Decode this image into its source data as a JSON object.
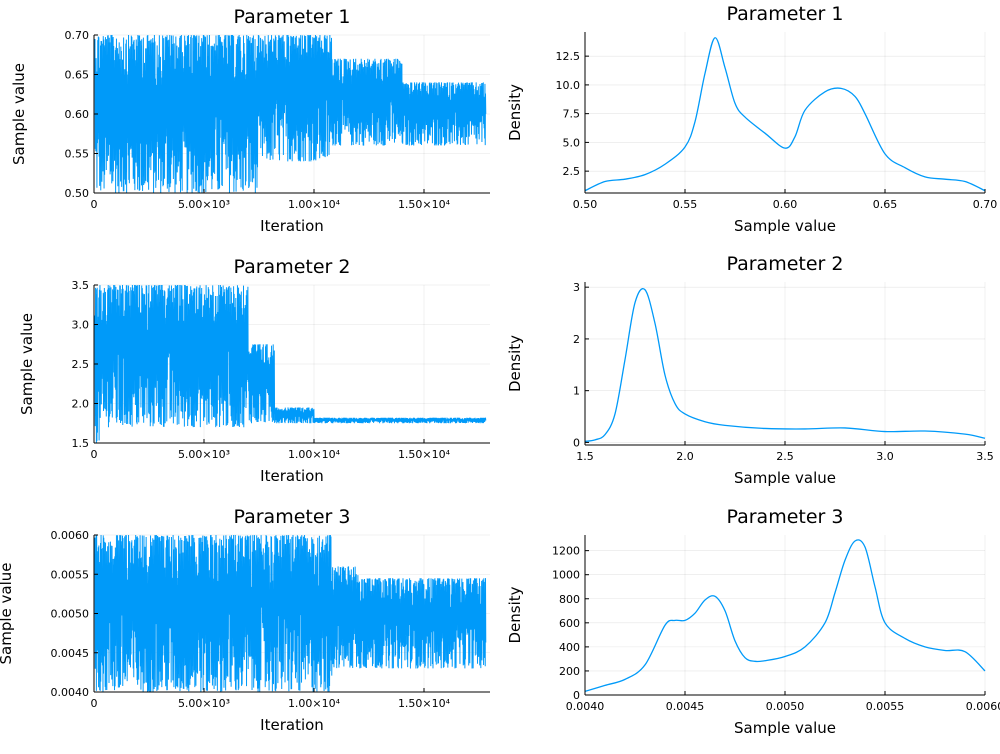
{
  "chart_data": [
    {
      "type": "line",
      "kind": "trace",
      "title": "Parameter 1",
      "xlabel": "Iteration",
      "ylabel": "Sample value",
      "xlim": [
        0,
        18000
      ],
      "ylim": [
        0.5,
        0.7
      ],
      "xticks": [
        0,
        5000,
        10000,
        15000
      ],
      "xtick_labels": [
        "0",
        "5.00×10³",
        "1.00×10⁴",
        "1.50×10⁴"
      ],
      "yticks": [
        0.5,
        0.55,
        0.6,
        0.65,
        0.7
      ],
      "ytick_labels": [
        "0.50",
        "0.55",
        "0.60",
        "0.65",
        "0.70"
      ],
      "color": "#009af9",
      "grid": true,
      "series": [
        {
          "segments": [
            {
              "x_start": 0,
              "x_end": 7500,
              "lower": 0.5,
              "upper": 0.7
            },
            {
              "x_start": 7500,
              "x_end": 10800,
              "lower": 0.54,
              "upper": 0.7
            },
            {
              "x_start": 10800,
              "x_end": 14000,
              "lower": 0.56,
              "upper": 0.67
            },
            {
              "x_start": 14000,
              "x_end": 18000,
              "lower": 0.56,
              "upper": 0.64
            }
          ]
        }
      ]
    },
    {
      "type": "line",
      "kind": "density",
      "title": "Parameter 1",
      "xlabel": "Sample value",
      "ylabel": "Density",
      "xlim": [
        0.5,
        0.7
      ],
      "ylim": [
        0.6,
        14.6
      ],
      "xticks": [
        0.5,
        0.55,
        0.6,
        0.65,
        0.7
      ],
      "xtick_labels": [
        "0.50",
        "0.55",
        "0.60",
        "0.65",
        "0.70"
      ],
      "yticks": [
        2.5,
        5.0,
        7.5,
        10.0,
        12.5
      ],
      "ytick_labels": [
        "2.5",
        "5.0",
        "7.5",
        "10.0",
        "12.5"
      ],
      "color": "#009af9",
      "grid": true,
      "series": [
        {
          "x": [
            0.5,
            0.51,
            0.52,
            0.53,
            0.54,
            0.55,
            0.555,
            0.56,
            0.565,
            0.57,
            0.575,
            0.58,
            0.59,
            0.6,
            0.605,
            0.61,
            0.62,
            0.628,
            0.635,
            0.64,
            0.65,
            0.66,
            0.67,
            0.68,
            0.69,
            0.7
          ],
          "y": [
            0.8,
            1.6,
            1.8,
            2.2,
            3.1,
            4.6,
            6.8,
            11.0,
            14.1,
            11.5,
            8.4,
            7.2,
            5.8,
            4.5,
            5.5,
            7.8,
            9.4,
            9.7,
            9.0,
            7.5,
            4.0,
            2.8,
            2.0,
            1.8,
            1.6,
            0.8
          ]
        }
      ]
    },
    {
      "type": "line",
      "kind": "trace",
      "title": "Parameter 2",
      "xlabel": "Iteration",
      "ylabel": "Sample value",
      "xlim": [
        0,
        18000
      ],
      "ylim": [
        1.5,
        3.5
      ],
      "xticks": [
        0,
        5000,
        10000,
        15000
      ],
      "xtick_labels": [
        "0",
        "5.00×10³",
        "1.00×10⁴",
        "1.50×10⁴"
      ],
      "yticks": [
        1.5,
        2.0,
        2.5,
        3.0,
        3.5
      ],
      "ytick_labels": [
        "1.5",
        "2.0",
        "2.5",
        "3.0",
        "3.5"
      ],
      "color": "#009af9",
      "grid": true,
      "series": [
        {
          "segments": [
            {
              "x_start": 0,
              "x_end": 500,
              "lower": 1.5,
              "upper": 3.5
            },
            {
              "x_start": 500,
              "x_end": 7000,
              "lower": 1.7,
              "upper": 3.5
            },
            {
              "x_start": 7000,
              "x_end": 8200,
              "lower": 1.75,
              "upper": 2.75
            },
            {
              "x_start": 8200,
              "x_end": 10000,
              "lower": 1.75,
              "upper": 1.95
            },
            {
              "x_start": 10000,
              "x_end": 18000,
              "lower": 1.75,
              "upper": 1.82
            }
          ]
        }
      ]
    },
    {
      "type": "line",
      "kind": "density",
      "title": "Parameter 2",
      "xlabel": "Sample value",
      "ylabel": "Density",
      "xlim": [
        1.5,
        3.5
      ],
      "ylim": [
        -0.05,
        3.1
      ],
      "xticks": [
        1.5,
        2.0,
        2.5,
        3.0,
        3.5
      ],
      "xtick_labels": [
        "1.5",
        "2.0",
        "2.5",
        "3.0",
        "3.5"
      ],
      "yticks": [
        0,
        1,
        2,
        3
      ],
      "ytick_labels": [
        "0",
        "1",
        "2",
        "3"
      ],
      "color": "#009af9",
      "grid": true,
      "series": [
        {
          "x": [
            1.5,
            1.55,
            1.6,
            1.65,
            1.7,
            1.75,
            1.8,
            1.85,
            1.9,
            1.95,
            2.0,
            2.1,
            2.2,
            2.4,
            2.6,
            2.8,
            3.0,
            3.2,
            3.4,
            3.5
          ],
          "y": [
            0.02,
            0.05,
            0.15,
            0.55,
            1.6,
            2.7,
            2.95,
            2.3,
            1.3,
            0.75,
            0.55,
            0.4,
            0.33,
            0.27,
            0.26,
            0.28,
            0.21,
            0.22,
            0.16,
            0.08
          ]
        }
      ]
    },
    {
      "type": "line",
      "kind": "trace",
      "title": "Parameter 3",
      "xlabel": "Iteration",
      "ylabel": "Sample value",
      "xlim": [
        0,
        18000
      ],
      "ylim": [
        0.004,
        0.006
      ],
      "xticks": [
        0,
        5000,
        10000,
        15000
      ],
      "xtick_labels": [
        "0",
        "5.00×10³",
        "1.00×10⁴",
        "1.50×10⁴"
      ],
      "yticks": [
        0.004,
        0.0045,
        0.005,
        0.0055,
        0.006
      ],
      "ytick_labels": [
        "0.0040",
        "0.0045",
        "0.0050",
        "0.0055",
        "0.0060"
      ],
      "color": "#009af9",
      "grid": true,
      "series": [
        {
          "segments": [
            {
              "x_start": 0,
              "x_end": 10800,
              "lower": 0.004,
              "upper": 0.006
            },
            {
              "x_start": 10800,
              "x_end": 12000,
              "lower": 0.0043,
              "upper": 0.0056
            },
            {
              "x_start": 12000,
              "x_end": 18000,
              "lower": 0.0043,
              "upper": 0.00545
            }
          ]
        }
      ]
    },
    {
      "type": "line",
      "kind": "density",
      "title": "Parameter 3",
      "xlabel": "Sample value",
      "ylabel": "Density",
      "xlim": [
        0.004,
        0.006
      ],
      "ylim": [
        0,
        1330
      ],
      "xticks": [
        0.004,
        0.0045,
        0.005,
        0.0055,
        0.006
      ],
      "xtick_labels": [
        "0.0040",
        "0.0045",
        "0.0050",
        "0.0055",
        "0.0060"
      ],
      "yticks": [
        0,
        200,
        400,
        600,
        800,
        1000,
        1200
      ],
      "ytick_labels": [
        "0",
        "200",
        "400",
        "600",
        "800",
        "1000",
        "1200"
      ],
      "color": "#009af9",
      "grid": true,
      "series": [
        {
          "x": [
            0.004,
            0.0041,
            0.0042,
            0.0043,
            0.0044,
            0.00445,
            0.0045,
            0.00455,
            0.0046,
            0.00465,
            0.0047,
            0.00475,
            0.0048,
            0.00485,
            0.0049,
            0.005,
            0.0051,
            0.0052,
            0.00525,
            0.0053,
            0.00535,
            0.0054,
            0.00545,
            0.0055,
            0.0056,
            0.0057,
            0.0058,
            0.0059,
            0.006
          ],
          "y": [
            30,
            80,
            130,
            250,
            580,
            620,
            620,
            680,
            790,
            820,
            700,
            450,
            310,
            280,
            285,
            320,
            400,
            600,
            850,
            1120,
            1280,
            1230,
            900,
            600,
            470,
            400,
            370,
            360,
            200
          ]
        }
      ]
    }
  ]
}
